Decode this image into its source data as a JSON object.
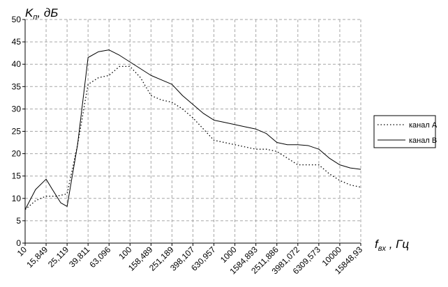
{
  "chart_data": {
    "type": "line",
    "ylabel": {
      "main": "K",
      "sub": "п",
      "unit": ", дБ"
    },
    "xlabel": {
      "main": "f",
      "sub": "вх",
      "unit": " , Гц"
    },
    "ylim": [
      0,
      50
    ],
    "y_ticks": [
      "0",
      "5",
      "10",
      "15",
      "20",
      "25",
      "30",
      "35",
      "40",
      "45",
      "50"
    ],
    "x_ticks": [
      "10",
      "15,849",
      "25,119",
      "39,811",
      "63,096",
      "100",
      "158,489",
      "251,189",
      "398,107",
      "630,957",
      "1000",
      "1584,893",
      "2511,886",
      "3981,072",
      "6309,573",
      "10000",
      "15848,93"
    ],
    "grid": true,
    "legend_position": "right",
    "series": [
      {
        "name": "канал А",
        "style": "dotted",
        "color": "#000000",
        "points": [
          [
            0,
            7.5
          ],
          [
            0.5,
            9.5
          ],
          [
            1,
            10.5
          ],
          [
            1.5,
            10.5
          ],
          [
            2,
            11
          ],
          [
            2.5,
            22
          ],
          [
            3,
            35.5
          ],
          [
            3.5,
            37
          ],
          [
            4,
            37.5
          ],
          [
            4.5,
            39.5
          ],
          [
            5,
            39.5
          ],
          [
            5.5,
            37
          ],
          [
            6,
            33
          ],
          [
            6.5,
            32
          ],
          [
            7,
            31.5
          ],
          [
            7.5,
            30
          ],
          [
            8,
            28
          ],
          [
            8.5,
            25.5
          ],
          [
            9,
            23
          ],
          [
            9.5,
            22.5
          ],
          [
            10,
            22
          ],
          [
            10.5,
            21.5
          ],
          [
            11,
            21
          ],
          [
            11.5,
            21
          ],
          [
            12,
            20.5
          ],
          [
            12.5,
            19
          ],
          [
            13,
            17.5
          ],
          [
            13.5,
            17.5
          ],
          [
            14,
            17.5
          ],
          [
            14.5,
            15.5
          ],
          [
            15,
            14
          ],
          [
            15.5,
            13
          ],
          [
            16,
            12.5
          ]
        ]
      },
      {
        "name": "канал В",
        "style": "solid",
        "color": "#000000",
        "points": [
          [
            0,
            7.5
          ],
          [
            0.5,
            12
          ],
          [
            1,
            14.3
          ],
          [
            1.3,
            12
          ],
          [
            1.7,
            9
          ],
          [
            2,
            8.2
          ],
          [
            2.5,
            22
          ],
          [
            3,
            41.5
          ],
          [
            3.5,
            42.8
          ],
          [
            4,
            43.2
          ],
          [
            4.5,
            42
          ],
          [
            5,
            40.5
          ],
          [
            5.5,
            39
          ],
          [
            6,
            37.5
          ],
          [
            6.5,
            36.5
          ],
          [
            7,
            35.5
          ],
          [
            7.5,
            33
          ],
          [
            8,
            31
          ],
          [
            8.5,
            29
          ],
          [
            9,
            27.5
          ],
          [
            9.5,
            27
          ],
          [
            10,
            26.5
          ],
          [
            10.5,
            26
          ],
          [
            11,
            25.5
          ],
          [
            11.5,
            24.5
          ],
          [
            12,
            22.5
          ],
          [
            12.5,
            22
          ],
          [
            13,
            22
          ],
          [
            13.5,
            21.8
          ],
          [
            14,
            21
          ],
          [
            14.5,
            19
          ],
          [
            15,
            17.5
          ],
          [
            15.5,
            16.8
          ],
          [
            16,
            16.5
          ]
        ]
      }
    ]
  }
}
